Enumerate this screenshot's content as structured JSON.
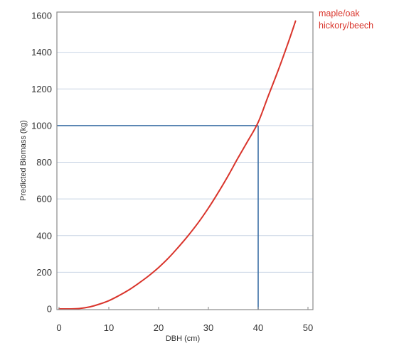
{
  "chart_data": {
    "type": "line",
    "title": "",
    "xlabel": "DBH (cm)",
    "ylabel": "Predicted Biomass (kg)",
    "xlim": [
      0,
      50
    ],
    "ylim": [
      0,
      1600
    ],
    "xticks": [
      "0",
      "10",
      "20",
      "30",
      "40",
      "50"
    ],
    "yticks": [
      "0",
      "200",
      "400",
      "600",
      "800",
      "1000",
      "1200",
      "1400",
      "1600"
    ],
    "grid": "horizontal",
    "legend_placement": "top-right, outside plot",
    "legend_lines": [
      "maple/oak",
      "hickory/beech"
    ],
    "series": [
      {
        "color": "#d9342b",
        "x": [
          0,
          2,
          4,
          6,
          8,
          10,
          12,
          14,
          16,
          18,
          20,
          22,
          24,
          26,
          28,
          30,
          32,
          34,
          36,
          38,
          40,
          42,
          44,
          46,
          47.5
        ],
        "y": [
          0,
          0,
          2,
          10,
          25,
          45,
          72,
          103,
          140,
          180,
          226,
          278,
          338,
          402,
          472,
          550,
          636,
          728,
          826,
          920,
          1018,
          1160,
          1300,
          1450,
          1570
        ]
      }
    ],
    "reference_lines": {
      "color": "#3a6ea5",
      "x": 40,
      "y": 1000
    }
  }
}
